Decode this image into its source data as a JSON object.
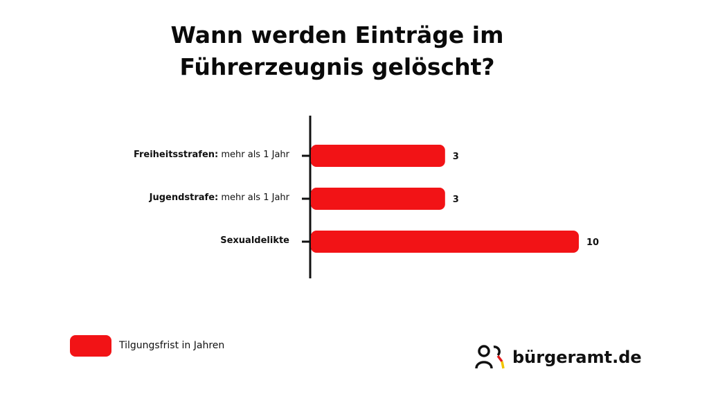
{
  "chart_data": {
    "type": "bar",
    "orientation": "horizontal",
    "title_lines": [
      "Wann werden Einträge im",
      "Führerzeugnis gelöscht?"
    ],
    "categories": [
      {
        "bold": "Freiheitsstrafen:",
        "rest": " mehr als 1 Jahr"
      },
      {
        "bold": "Jugendstrafe:",
        "rest": " mehr als 1 Jahr"
      },
      {
        "bold": "Sexualdelikte",
        "rest": ""
      }
    ],
    "values": [
      3,
      3,
      10
    ],
    "value_labels": [
      "3",
      "3",
      "10"
    ],
    "series_name": "Tilgungsfrist in Jahren",
    "legend_position": "bottom-left",
    "grid": false,
    "xlabel": "",
    "ylabel": ""
  },
  "colors": {
    "bar": "#f21316",
    "axis": "#111111"
  },
  "logo": {
    "text": "bürgeramt.de"
  }
}
